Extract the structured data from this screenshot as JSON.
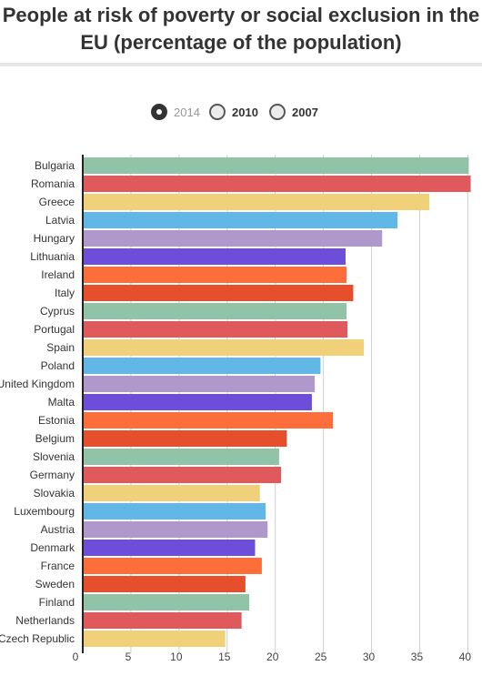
{
  "title": "People at risk of poverty or social exclusion in the EU (percentage of the population)",
  "legend": [
    {
      "label": "2014",
      "selected": true
    },
    {
      "label": "2010",
      "selected": false
    },
    {
      "label": "2007",
      "selected": false
    }
  ],
  "chart_data": {
    "type": "bar",
    "orientation": "horizontal",
    "selected_year": "2014",
    "grid": true,
    "xlim": [
      0,
      41
    ],
    "x_ticks": [
      0,
      5,
      10,
      15,
      20,
      25,
      30,
      35,
      40
    ],
    "categories": [
      "Bulgaria",
      "Romania",
      "Greece",
      "Latvia",
      "Hungary",
      "Lithuania",
      "Ireland",
      "Italy",
      "Cyprus",
      "Portugal",
      "Spain",
      "Poland",
      "United Kingdom",
      "Malta",
      "Estonia",
      "Belgium",
      "Slovenia",
      "Germany",
      "Slovakia",
      "Luxembourg",
      "Austria",
      "Denmark",
      "France",
      "Sweden",
      "Finland",
      "Netherlands",
      "Czech Republic"
    ],
    "values": [
      40.1,
      40.3,
      36.0,
      32.7,
      31.1,
      27.3,
      27.4,
      28.1,
      27.4,
      27.5,
      29.2,
      24.7,
      24.1,
      23.8,
      26.0,
      21.2,
      20.4,
      20.6,
      18.4,
      19.0,
      19.2,
      17.9,
      18.6,
      16.9,
      17.3,
      16.5,
      14.8
    ],
    "colors": [
      "#91c4a7",
      "#e05a5d",
      "#f1d07a",
      "#61b8e6",
      "#ae98cc",
      "#6d4ed8",
      "#fe6e3a",
      "#e74f2c"
    ]
  }
}
